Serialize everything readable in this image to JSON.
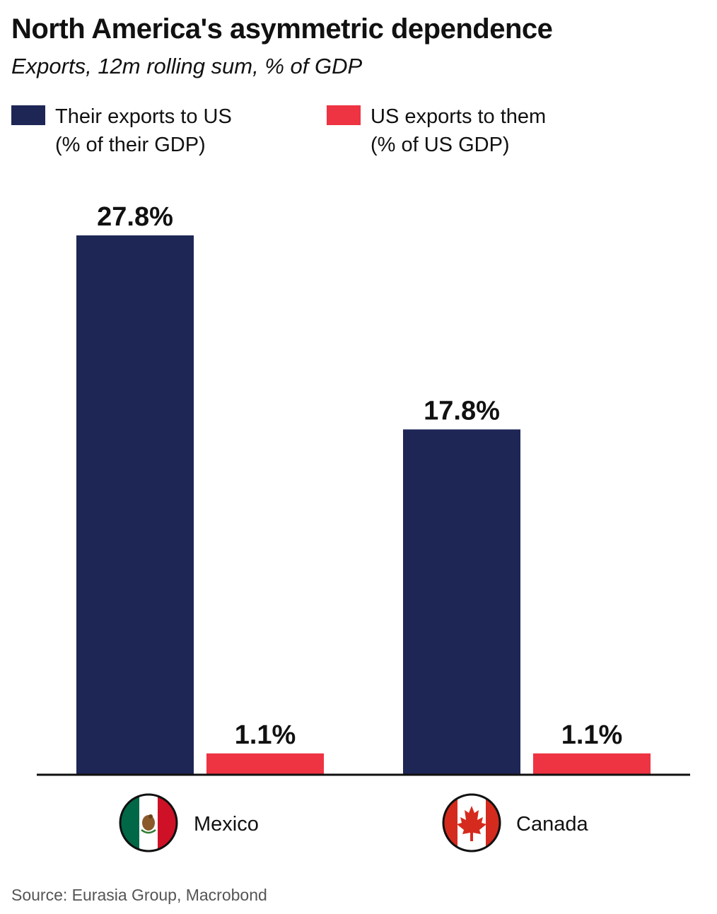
{
  "chart_data": {
    "type": "bar",
    "title": "North America's asymmetric dependence",
    "subtitle": "Exports, 12m rolling sum, % of GDP",
    "categories": [
      "Mexico",
      "Canada"
    ],
    "series": [
      {
        "name": "Their exports to US (% of their GDP)",
        "name_lines": [
          "Their exports to US",
          "(% of their GDP)"
        ],
        "color": "#1e2656",
        "values": [
          27.8,
          17.8
        ],
        "labels": [
          "27.8%",
          "17.8%"
        ]
      },
      {
        "name": "US exports to them (% of US GDP)",
        "name_lines": [
          "US exports to them",
          "(% of US GDP)"
        ],
        "color": "#ee3342",
        "values": [
          1.1,
          1.1
        ],
        "labels": [
          "1.1%",
          "1.1%"
        ]
      }
    ],
    "ylim": [
      0,
      30
    ],
    "grid": false,
    "legend_position": "top-left",
    "category_icons": [
      "mexico-flag-icon",
      "canada-flag-icon"
    ]
  },
  "source": "Source: Eurasia Group, Macrobond"
}
